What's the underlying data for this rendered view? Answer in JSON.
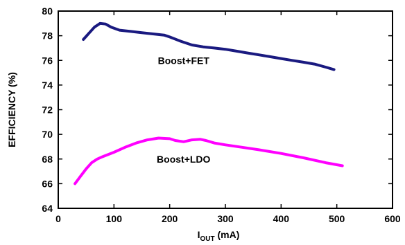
{
  "chart_data": {
    "type": "line",
    "title": "",
    "xlabel": {
      "main": "I",
      "sub": "OUT",
      "unit": " (mA)"
    },
    "ylabel": "EFFICIENCY (%)",
    "xlim": [
      0,
      600
    ],
    "ylim": [
      64,
      80
    ],
    "xticks": [
      0,
      100,
      200,
      300,
      400,
      500,
      600
    ],
    "yticks": [
      64,
      66,
      68,
      70,
      72,
      74,
      76,
      78,
      80
    ],
    "grid": false,
    "series": [
      {
        "name": "Boost+FET",
        "color": "#1a1a80",
        "label_at": {
          "x": 225,
          "y": 76
        },
        "x": [
          45,
          55,
          65,
          75,
          85,
          95,
          110,
          130,
          150,
          170,
          190,
          200,
          220,
          240,
          260,
          280,
          300,
          320,
          340,
          360,
          380,
          400,
          420,
          440,
          460,
          480,
          495
        ],
        "y": [
          77.7,
          78.2,
          78.7,
          79.0,
          78.95,
          78.7,
          78.45,
          78.35,
          78.25,
          78.15,
          78.05,
          77.9,
          77.55,
          77.25,
          77.1,
          77.0,
          76.9,
          76.75,
          76.6,
          76.45,
          76.3,
          76.15,
          76.0,
          75.85,
          75.7,
          75.45,
          75.25
        ]
      },
      {
        "name": "Boost+LDO",
        "color": "#ff00ff",
        "label_at": {
          "x": 225,
          "y": 68
        },
        "x": [
          30,
          40,
          50,
          60,
          70,
          80,
          100,
          120,
          140,
          160,
          180,
          200,
          210,
          225,
          240,
          255,
          265,
          280,
          300,
          330,
          360,
          400,
          440,
          480,
          510
        ],
        "y": [
          66.0,
          66.6,
          67.2,
          67.7,
          68.0,
          68.2,
          68.55,
          68.95,
          69.3,
          69.55,
          69.7,
          69.65,
          69.5,
          69.4,
          69.55,
          69.6,
          69.5,
          69.3,
          69.15,
          68.95,
          68.75,
          68.45,
          68.1,
          67.7,
          67.45
        ]
      }
    ]
  }
}
